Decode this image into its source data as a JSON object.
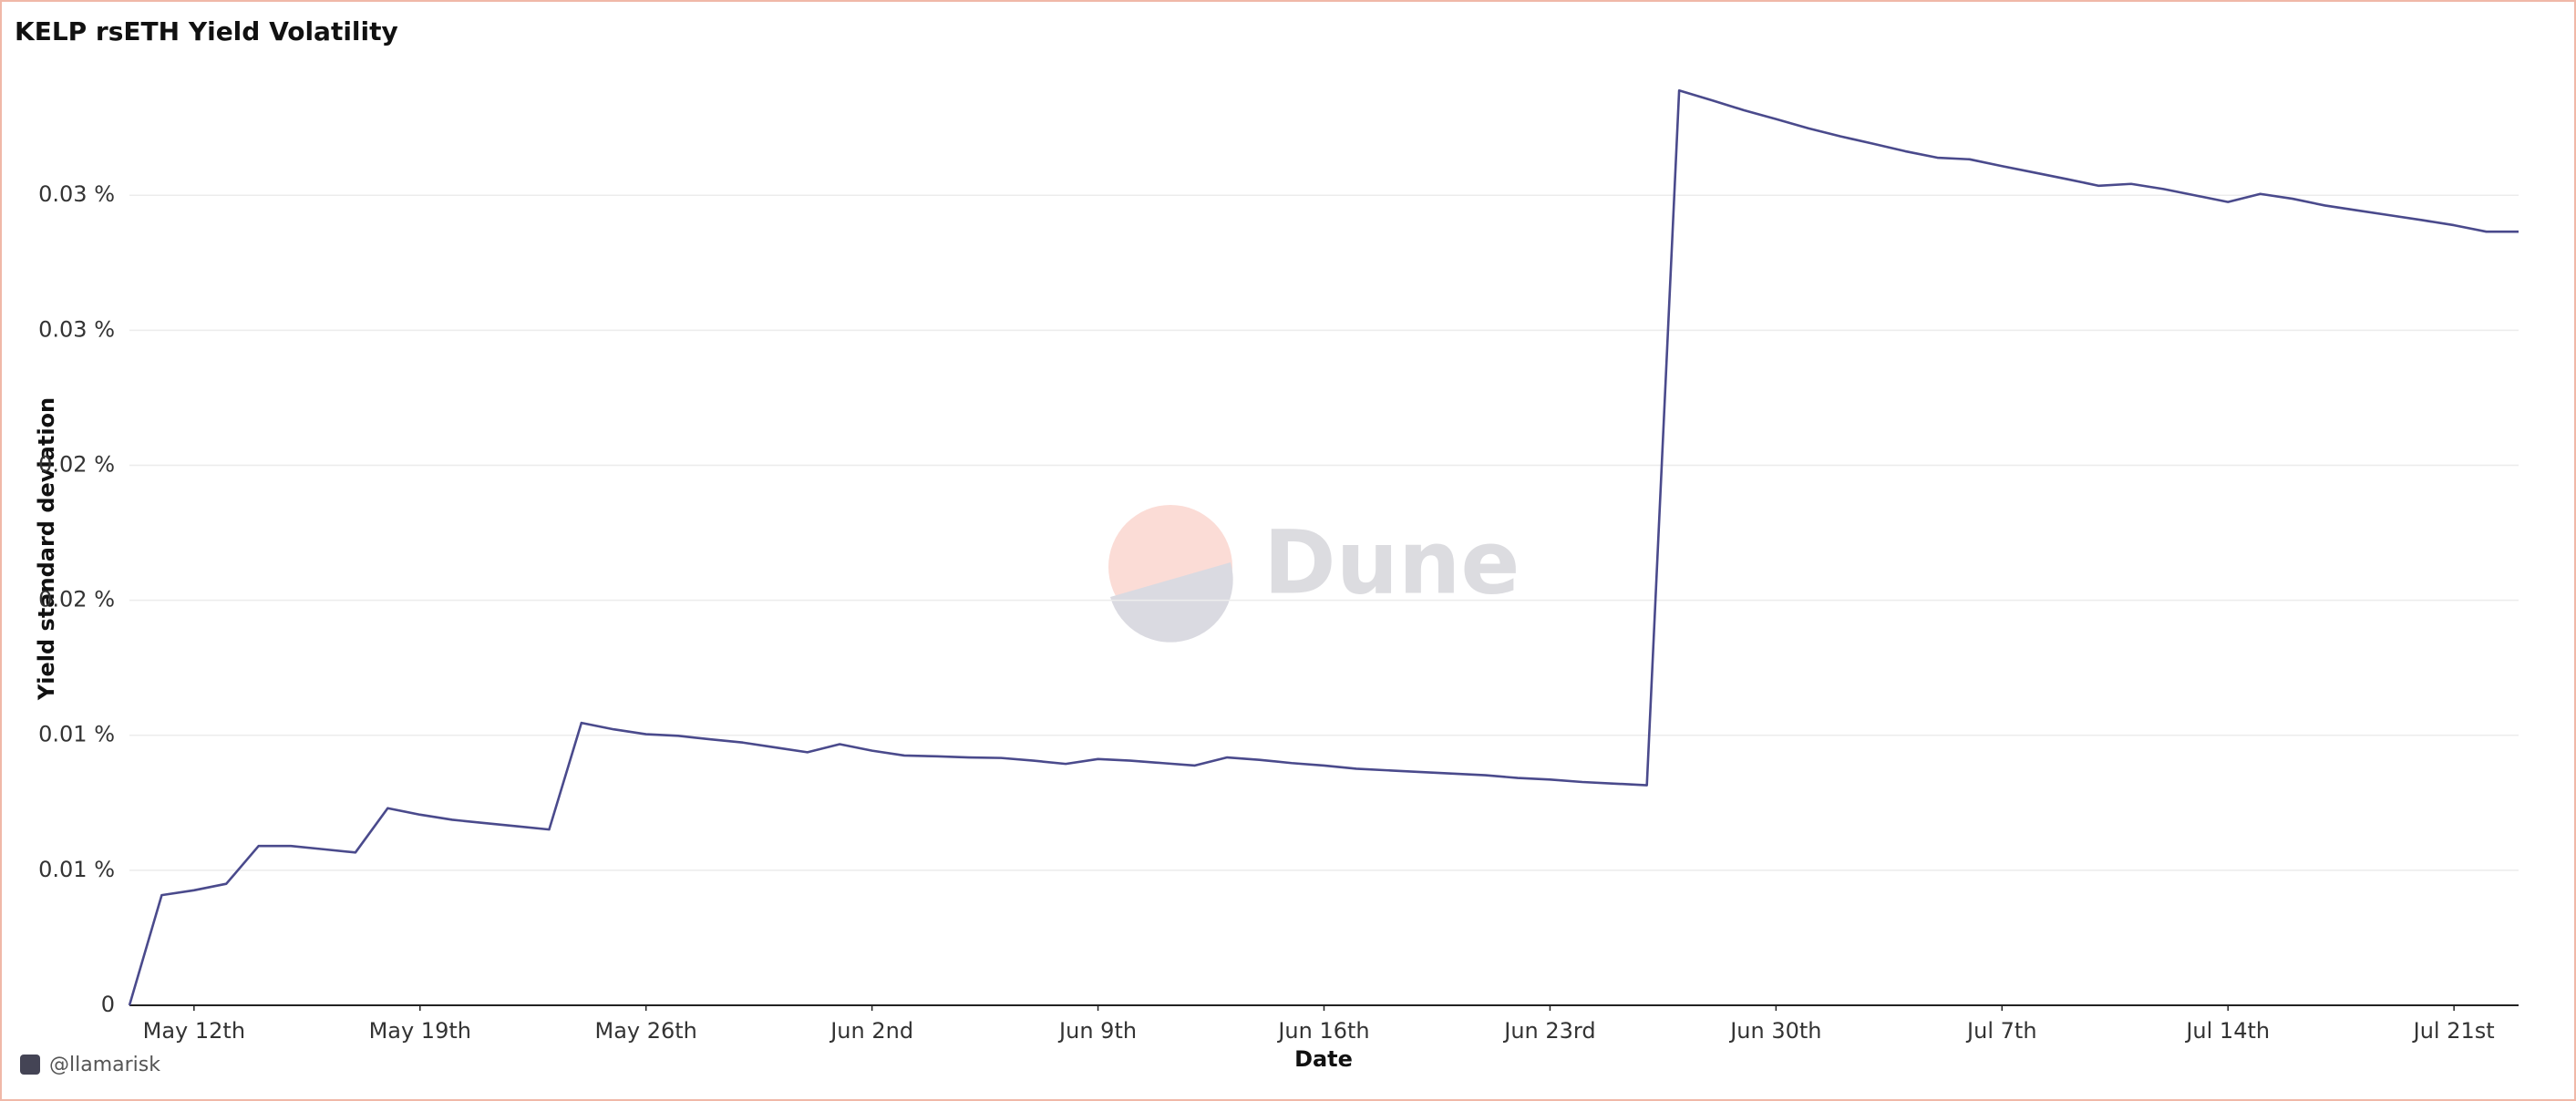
{
  "chart_data": {
    "type": "line",
    "title": "KELP rsETH Yield Volatility",
    "y_label": "Yield standard deviation",
    "x_label": "Date",
    "credit": "@llamarisk",
    "watermark": "Dune",
    "color": "#4a4a8c",
    "grid": true,
    "x": [
      "May 10th",
      "May 11th",
      "May 12th",
      "May 13th",
      "May 14th",
      "May 15th",
      "May 16th",
      "May 17th",
      "May 18th",
      "May 19th",
      "May 20th",
      "May 21st",
      "May 22nd",
      "May 23rd",
      "May 24th",
      "May 25th",
      "May 26th",
      "May 27th",
      "May 28th",
      "May 29th",
      "May 30th",
      "May 31st",
      "Jun 1st",
      "Jun 2nd",
      "Jun 3rd",
      "Jun 4th",
      "Jun 5th",
      "Jun 6th",
      "Jun 7th",
      "Jun 8th",
      "Jun 9th",
      "Jun 10th",
      "Jun 11th",
      "Jun 12th",
      "Jun 13th",
      "Jun 14th",
      "Jun 15th",
      "Jun 16th",
      "Jun 17th",
      "Jun 18th",
      "Jun 19th",
      "Jun 20th",
      "Jun 21st",
      "Jun 22nd",
      "Jun 23rd",
      "Jun 24th",
      "Jun 25th",
      "Jun 26th",
      "Jun 27th",
      "Jun 28th",
      "Jun 29th",
      "Jun 30th",
      "Jul 1st",
      "Jul 2nd",
      "Jul 3rd",
      "Jul 4th",
      "Jul 5th",
      "Jul 6th",
      "Jul 7th",
      "Jul 8th",
      "Jul 9th",
      "Jul 10th",
      "Jul 11th",
      "Jul 12th",
      "Jul 13th",
      "Jul 14th",
      "Jul 15th",
      "Jul 16th",
      "Jul 17th",
      "Jul 18th",
      "Jul 19th",
      "Jul 20th",
      "Jul 21st",
      "Jul 22nd",
      "Jul 23rd"
    ],
    "values": [
      0,
      0.00408,
      0.00426,
      0.0045,
      0.0059,
      0.0059,
      0.00578,
      0.00566,
      0.0073,
      0.00706,
      0.00687,
      0.00675,
      0.00663,
      0.00651,
      0.01046,
      0.01022,
      0.01004,
      0.00998,
      0.00985,
      0.00973,
      0.00955,
      0.00937,
      0.00967,
      0.00943,
      0.00925,
      0.00922,
      0.00918,
      0.00916,
      0.00906,
      0.00894,
      0.00912,
      0.00906,
      0.00897,
      0.00888,
      0.00918,
      0.00909,
      0.00897,
      0.00888,
      0.00876,
      0.0087,
      0.00864,
      0.00858,
      0.00852,
      0.00842,
      0.00836,
      0.00827,
      0.00821,
      0.00815,
      0.03388,
      0.03352,
      0.03315,
      0.03282,
      0.03248,
      0.03218,
      0.03191,
      0.03163,
      0.03139,
      0.03133,
      0.03108,
      0.03084,
      0.0306,
      0.03035,
      0.03042,
      0.03023,
      0.02999,
      0.02975,
      0.03005,
      0.02987,
      0.02962,
      0.02944,
      0.02926,
      0.02908,
      0.02889,
      0.02865,
      0.02865
    ],
    "xticks": [
      "May 12th",
      "May 19th",
      "May 26th",
      "Jun 2nd",
      "Jun 9th",
      "Jun 16th",
      "Jun 23rd",
      "Jun 30th",
      "Jul 7th",
      "Jul 14th",
      "Jul 21st"
    ],
    "ylim": [
      0,
      0.0348
    ],
    "yticks": [
      0,
      {
        "value": 0.005,
        "label": "0.01 %"
      },
      {
        "value": 0.01,
        "label": "0.01 %"
      },
      {
        "value": 0.015,
        "label": "0.02 %"
      },
      {
        "value": 0.02,
        "label": "0.02 %"
      },
      {
        "value": 0.025,
        "label": "0.03 %"
      },
      {
        "value": 0.03,
        "label": "0.03 %"
      }
    ]
  }
}
